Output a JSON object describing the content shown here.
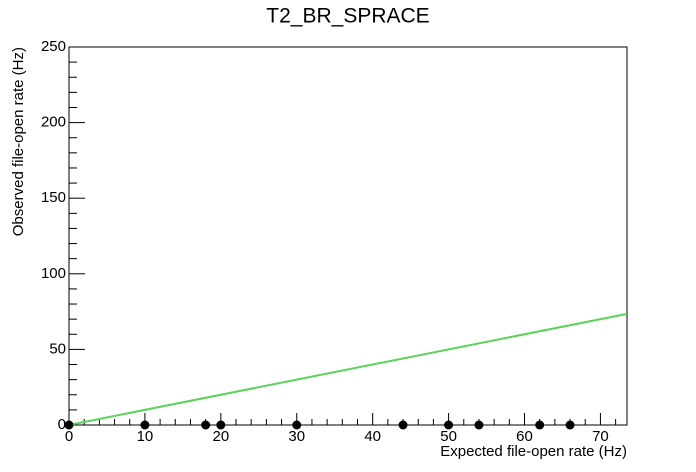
{
  "chart_data": {
    "type": "scatter",
    "title": "T2_BR_SPRACE",
    "x_label": "Expected file-open rate (Hz)",
    "y_label": "Observed file-open rate (Hz)",
    "series": [
      {
        "color": "#000000",
        "style": "points",
        "x": [
          0,
          10,
          18,
          20,
          30,
          44,
          50,
          54,
          62,
          66
        ],
        "values": [
          0,
          0,
          0,
          0,
          0,
          0,
          0,
          0,
          0,
          0
        ]
      },
      {
        "color": "#5bd35b",
        "style": "line",
        "x": [
          0,
          73.5
        ],
        "values": [
          0,
          73.5
        ]
      }
    ],
    "xlim": [
      0,
      73.5
    ],
    "xticks": [
      0,
      10,
      20,
      30,
      40,
      50,
      60,
      70
    ],
    "ylim": [
      0,
      250
    ],
    "yticks": [
      0,
      50,
      100,
      150,
      200,
      250
    ],
    "minor_divisions": 5
  }
}
